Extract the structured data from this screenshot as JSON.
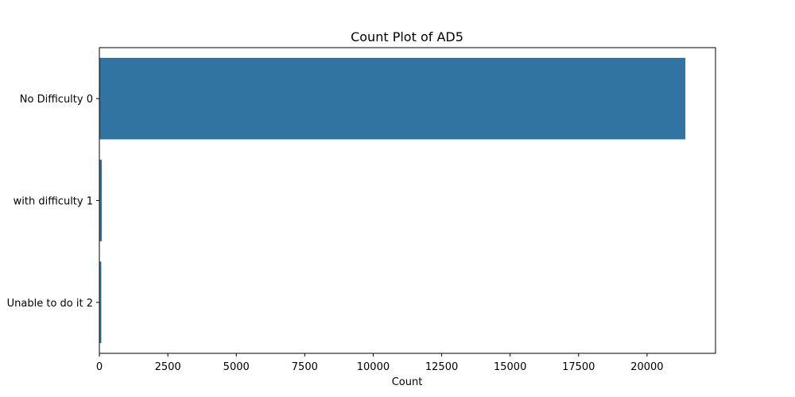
{
  "chart_data": {
    "type": "bar",
    "orientation": "horizontal",
    "title": "Count Plot of AD5",
    "xlabel": "Count",
    "ylabel": "",
    "categories": [
      "No Difficulty 0",
      "with difficulty 1",
      "Unable to do it 2"
    ],
    "values": [
      21400,
      90,
      70
    ],
    "xlim": [
      0,
      22500
    ],
    "xticks": [
      0,
      2500,
      5000,
      7500,
      10000,
      12500,
      15000,
      17500,
      20000
    ],
    "xtick_labels": [
      "0",
      "2500",
      "5000",
      "7500",
      "10000",
      "12500",
      "15000",
      "17500",
      "20000"
    ],
    "grid": false,
    "legend": "none",
    "bar_color": "#3274a1"
  }
}
